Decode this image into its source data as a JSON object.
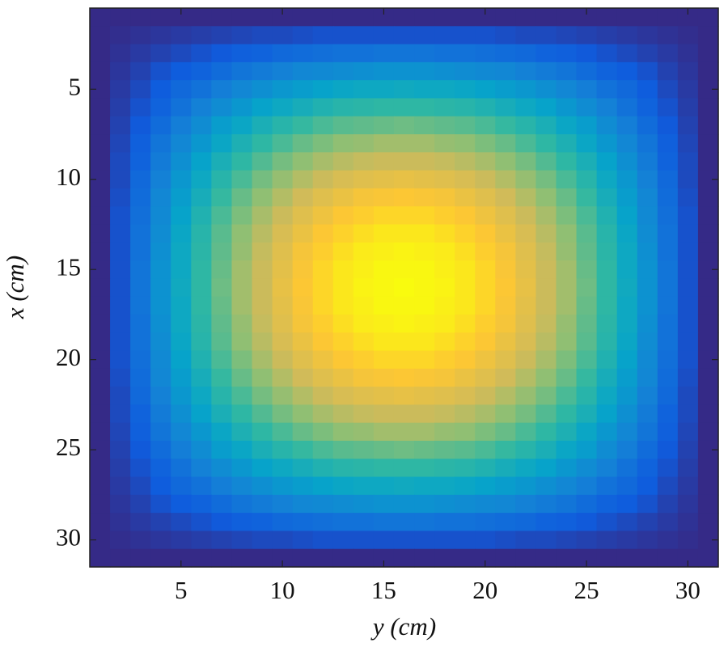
{
  "chart_data": {
    "type": "heatmap",
    "xlabel": "y (cm)",
    "ylabel": "x (cm)",
    "x": [
      1,
      2,
      3,
      4,
      5,
      6,
      7,
      8,
      9,
      10,
      11,
      12,
      13,
      14,
      15,
      16,
      17,
      18,
      19,
      20,
      21,
      22,
      23,
      24,
      25,
      26,
      27,
      28,
      29,
      30,
      31
    ],
    "y": [
      1,
      2,
      3,
      4,
      5,
      6,
      7,
      8,
      9,
      10,
      11,
      12,
      13,
      14,
      15,
      16,
      17,
      18,
      19,
      20,
      21,
      22,
      23,
      24,
      25,
      26,
      27,
      28,
      29,
      30,
      31
    ],
    "xlim": [
      0.5,
      31.5
    ],
    "ylim": [
      0.5,
      31.5
    ],
    "y_reversed": true,
    "xticks": [
      5,
      10,
      15,
      20,
      25,
      30
    ],
    "yticks": [
      5,
      10,
      15,
      20,
      25,
      30
    ],
    "zlim": [
      0,
      1
    ],
    "colormap": [
      "#352a87",
      "#0f5cdd",
      "#1481d6",
      "#06a4ca",
      "#2eb7a4",
      "#87bf77",
      "#d1bb59",
      "#fec832",
      "#f9fb0e"
    ],
    "z": [
      [
        0,
        0,
        0,
        0,
        0,
        0,
        0,
        0,
        0,
        0,
        0,
        0,
        0,
        0,
        0,
        0,
        0,
        0,
        0,
        0,
        0,
        0,
        0,
        0,
        0,
        0,
        0,
        0,
        0,
        0,
        0
      ],
      [
        0,
        0.01,
        0.02,
        0.03,
        0.04,
        0.05,
        0.06,
        0.07,
        0.08,
        0.08,
        0.09,
        0.1,
        0.1,
        0.1,
        0.1,
        0.1,
        0.1,
        0.1,
        0.1,
        0.1,
        0.09,
        0.08,
        0.08,
        0.07,
        0.06,
        0.05,
        0.04,
        0.03,
        0.02,
        0.01,
        0
      ],
      [
        0,
        0.02,
        0.04,
        0.06,
        0.08,
        0.1,
        0.12,
        0.14,
        0.15,
        0.17,
        0.18,
        0.19,
        0.2,
        0.2,
        0.21,
        0.21,
        0.21,
        0.2,
        0.2,
        0.19,
        0.18,
        0.17,
        0.15,
        0.14,
        0.12,
        0.1,
        0.08,
        0.06,
        0.04,
        0.02,
        0
      ],
      [
        0,
        0.03,
        0.06,
        0.1,
        0.13,
        0.15,
        0.18,
        0.21,
        0.23,
        0.25,
        0.27,
        0.28,
        0.29,
        0.3,
        0.31,
        0.31,
        0.31,
        0.3,
        0.29,
        0.28,
        0.27,
        0.25,
        0.23,
        0.21,
        0.18,
        0.15,
        0.13,
        0.1,
        0.06,
        0.03,
        0
      ],
      [
        0,
        0.04,
        0.08,
        0.13,
        0.17,
        0.2,
        0.24,
        0.27,
        0.3,
        0.33,
        0.35,
        0.37,
        0.39,
        0.4,
        0.4,
        0.41,
        0.4,
        0.4,
        0.39,
        0.37,
        0.35,
        0.33,
        0.3,
        0.27,
        0.24,
        0.2,
        0.17,
        0.13,
        0.08,
        0.04,
        0
      ],
      [
        0,
        0.05,
        0.1,
        0.15,
        0.2,
        0.25,
        0.29,
        0.33,
        0.37,
        0.4,
        0.43,
        0.46,
        0.48,
        0.49,
        0.5,
        0.5,
        0.5,
        0.49,
        0.48,
        0.46,
        0.43,
        0.4,
        0.37,
        0.33,
        0.29,
        0.25,
        0.2,
        0.15,
        0.1,
        0.05,
        0
      ],
      [
        0,
        0.06,
        0.12,
        0.18,
        0.24,
        0.29,
        0.35,
        0.39,
        0.44,
        0.48,
        0.51,
        0.54,
        0.56,
        0.57,
        0.58,
        0.59,
        0.58,
        0.57,
        0.56,
        0.54,
        0.51,
        0.48,
        0.44,
        0.39,
        0.35,
        0.29,
        0.24,
        0.18,
        0.12,
        0.06,
        0
      ],
      [
        0,
        0.07,
        0.14,
        0.21,
        0.27,
        0.33,
        0.39,
        0.45,
        0.5,
        0.54,
        0.58,
        0.61,
        0.64,
        0.65,
        0.67,
        0.67,
        0.67,
        0.65,
        0.64,
        0.61,
        0.58,
        0.54,
        0.5,
        0.45,
        0.39,
        0.33,
        0.27,
        0.21,
        0.14,
        0.07,
        0
      ],
      [
        0,
        0.08,
        0.15,
        0.23,
        0.3,
        0.37,
        0.44,
        0.5,
        0.55,
        0.6,
        0.64,
        0.68,
        0.71,
        0.73,
        0.74,
        0.74,
        0.74,
        0.73,
        0.71,
        0.68,
        0.64,
        0.6,
        0.55,
        0.5,
        0.44,
        0.37,
        0.3,
        0.23,
        0.15,
        0.08,
        0
      ],
      [
        0,
        0.08,
        0.17,
        0.25,
        0.33,
        0.4,
        0.48,
        0.54,
        0.6,
        0.65,
        0.7,
        0.74,
        0.77,
        0.79,
        0.8,
        0.81,
        0.8,
        0.79,
        0.77,
        0.74,
        0.7,
        0.65,
        0.6,
        0.54,
        0.48,
        0.4,
        0.33,
        0.25,
        0.17,
        0.08,
        0
      ],
      [
        0,
        0.09,
        0.18,
        0.27,
        0.35,
        0.43,
        0.51,
        0.58,
        0.64,
        0.7,
        0.75,
        0.79,
        0.82,
        0.85,
        0.86,
        0.87,
        0.86,
        0.85,
        0.82,
        0.79,
        0.75,
        0.7,
        0.64,
        0.58,
        0.51,
        0.43,
        0.35,
        0.27,
        0.18,
        0.09,
        0
      ],
      [
        0,
        0.1,
        0.19,
        0.28,
        0.37,
        0.46,
        0.54,
        0.61,
        0.68,
        0.74,
        0.79,
        0.83,
        0.87,
        0.89,
        0.91,
        0.91,
        0.91,
        0.89,
        0.87,
        0.83,
        0.79,
        0.74,
        0.68,
        0.61,
        0.54,
        0.46,
        0.37,
        0.28,
        0.19,
        0.1,
        0
      ],
      [
        0,
        0.1,
        0.2,
        0.29,
        0.39,
        0.48,
        0.56,
        0.64,
        0.71,
        0.77,
        0.82,
        0.87,
        0.9,
        0.93,
        0.95,
        0.95,
        0.95,
        0.93,
        0.9,
        0.87,
        0.82,
        0.77,
        0.71,
        0.64,
        0.56,
        0.48,
        0.39,
        0.29,
        0.2,
        0.1,
        0
      ],
      [
        0,
        0.1,
        0.2,
        0.3,
        0.4,
        0.49,
        0.57,
        0.65,
        0.73,
        0.79,
        0.85,
        0.89,
        0.93,
        0.96,
        0.97,
        0.98,
        0.97,
        0.96,
        0.93,
        0.89,
        0.85,
        0.79,
        0.73,
        0.65,
        0.57,
        0.49,
        0.4,
        0.3,
        0.2,
        0.1,
        0
      ],
      [
        0,
        0.1,
        0.21,
        0.31,
        0.4,
        0.5,
        0.58,
        0.67,
        0.74,
        0.8,
        0.86,
        0.91,
        0.95,
        0.97,
        0.99,
        0.99,
        0.99,
        0.97,
        0.95,
        0.91,
        0.86,
        0.8,
        0.74,
        0.67,
        0.58,
        0.5,
        0.4,
        0.31,
        0.21,
        0.1,
        0
      ],
      [
        0,
        0.1,
        0.21,
        0.31,
        0.41,
        0.5,
        0.59,
        0.67,
        0.74,
        0.81,
        0.87,
        0.91,
        0.95,
        0.98,
        0.99,
        1,
        0.99,
        0.98,
        0.95,
        0.91,
        0.87,
        0.81,
        0.74,
        0.67,
        0.59,
        0.5,
        0.41,
        0.31,
        0.21,
        0.1,
        0
      ],
      [
        0,
        0.1,
        0.21,
        0.31,
        0.4,
        0.5,
        0.58,
        0.67,
        0.74,
        0.8,
        0.86,
        0.91,
        0.95,
        0.97,
        0.99,
        0.99,
        0.99,
        0.97,
        0.95,
        0.91,
        0.86,
        0.8,
        0.74,
        0.67,
        0.58,
        0.5,
        0.4,
        0.31,
        0.21,
        0.1,
        0
      ],
      [
        0,
        0.1,
        0.2,
        0.3,
        0.4,
        0.49,
        0.57,
        0.65,
        0.73,
        0.79,
        0.85,
        0.89,
        0.93,
        0.96,
        0.97,
        0.98,
        0.97,
        0.96,
        0.93,
        0.89,
        0.85,
        0.79,
        0.73,
        0.65,
        0.57,
        0.49,
        0.4,
        0.3,
        0.2,
        0.1,
        0
      ],
      [
        0,
        0.1,
        0.2,
        0.29,
        0.39,
        0.48,
        0.56,
        0.64,
        0.71,
        0.77,
        0.82,
        0.87,
        0.9,
        0.93,
        0.95,
        0.95,
        0.95,
        0.93,
        0.9,
        0.87,
        0.82,
        0.77,
        0.71,
        0.64,
        0.56,
        0.48,
        0.39,
        0.29,
        0.2,
        0.1,
        0
      ],
      [
        0,
        0.1,
        0.19,
        0.28,
        0.37,
        0.46,
        0.54,
        0.61,
        0.68,
        0.74,
        0.79,
        0.83,
        0.87,
        0.89,
        0.91,
        0.91,
        0.91,
        0.89,
        0.87,
        0.83,
        0.79,
        0.74,
        0.68,
        0.61,
        0.54,
        0.46,
        0.37,
        0.28,
        0.19,
        0.1,
        0
      ],
      [
        0,
        0.09,
        0.18,
        0.27,
        0.35,
        0.43,
        0.51,
        0.58,
        0.64,
        0.7,
        0.75,
        0.79,
        0.82,
        0.85,
        0.86,
        0.87,
        0.86,
        0.85,
        0.82,
        0.79,
        0.75,
        0.7,
        0.64,
        0.58,
        0.51,
        0.43,
        0.35,
        0.27,
        0.18,
        0.09,
        0
      ],
      [
        0,
        0.08,
        0.17,
        0.25,
        0.33,
        0.4,
        0.48,
        0.54,
        0.6,
        0.65,
        0.7,
        0.74,
        0.77,
        0.79,
        0.8,
        0.81,
        0.8,
        0.79,
        0.77,
        0.74,
        0.7,
        0.65,
        0.6,
        0.54,
        0.48,
        0.4,
        0.33,
        0.25,
        0.17,
        0.08,
        0
      ],
      [
        0,
        0.08,
        0.15,
        0.23,
        0.3,
        0.37,
        0.44,
        0.5,
        0.55,
        0.6,
        0.64,
        0.68,
        0.71,
        0.73,
        0.74,
        0.74,
        0.74,
        0.73,
        0.71,
        0.68,
        0.64,
        0.6,
        0.55,
        0.5,
        0.44,
        0.37,
        0.3,
        0.23,
        0.15,
        0.08,
        0
      ],
      [
        0,
        0.07,
        0.14,
        0.21,
        0.27,
        0.33,
        0.39,
        0.45,
        0.5,
        0.54,
        0.58,
        0.61,
        0.64,
        0.65,
        0.67,
        0.67,
        0.67,
        0.65,
        0.64,
        0.61,
        0.58,
        0.54,
        0.5,
        0.45,
        0.39,
        0.33,
        0.27,
        0.21,
        0.14,
        0.07,
        0
      ],
      [
        0,
        0.06,
        0.12,
        0.18,
        0.24,
        0.29,
        0.35,
        0.39,
        0.44,
        0.48,
        0.51,
        0.54,
        0.56,
        0.57,
        0.58,
        0.59,
        0.58,
        0.57,
        0.56,
        0.54,
        0.51,
        0.48,
        0.44,
        0.39,
        0.35,
        0.29,
        0.24,
        0.18,
        0.12,
        0.06,
        0
      ],
      [
        0,
        0.05,
        0.1,
        0.15,
        0.2,
        0.25,
        0.29,
        0.33,
        0.37,
        0.4,
        0.43,
        0.46,
        0.48,
        0.49,
        0.5,
        0.5,
        0.5,
        0.49,
        0.48,
        0.46,
        0.43,
        0.4,
        0.37,
        0.33,
        0.29,
        0.25,
        0.2,
        0.15,
        0.1,
        0.05,
        0
      ],
      [
        0,
        0.04,
        0.08,
        0.13,
        0.17,
        0.2,
        0.24,
        0.27,
        0.3,
        0.33,
        0.35,
        0.37,
        0.39,
        0.4,
        0.4,
        0.41,
        0.4,
        0.4,
        0.39,
        0.37,
        0.35,
        0.33,
        0.3,
        0.27,
        0.24,
        0.2,
        0.17,
        0.13,
        0.08,
        0.04,
        0
      ],
      [
        0,
        0.03,
        0.06,
        0.1,
        0.13,
        0.15,
        0.18,
        0.21,
        0.23,
        0.25,
        0.27,
        0.28,
        0.29,
        0.3,
        0.31,
        0.31,
        0.31,
        0.3,
        0.29,
        0.28,
        0.27,
        0.25,
        0.23,
        0.21,
        0.18,
        0.15,
        0.13,
        0.1,
        0.06,
        0.03,
        0
      ],
      [
        0,
        0.02,
        0.04,
        0.06,
        0.08,
        0.1,
        0.12,
        0.14,
        0.15,
        0.17,
        0.18,
        0.19,
        0.2,
        0.2,
        0.21,
        0.21,
        0.21,
        0.2,
        0.2,
        0.19,
        0.18,
        0.17,
        0.15,
        0.14,
        0.12,
        0.1,
        0.08,
        0.06,
        0.04,
        0.02,
        0
      ],
      [
        0,
        0.01,
        0.02,
        0.03,
        0.04,
        0.05,
        0.06,
        0.07,
        0.08,
        0.08,
        0.09,
        0.1,
        0.1,
        0.1,
        0.1,
        0.1,
        0.1,
        0.1,
        0.1,
        0.1,
        0.09,
        0.08,
        0.08,
        0.07,
        0.06,
        0.05,
        0.04,
        0.03,
        0.02,
        0.01,
        0
      ],
      [
        0,
        0,
        0,
        0,
        0,
        0,
        0,
        0,
        0,
        0,
        0,
        0,
        0,
        0,
        0,
        0,
        0,
        0,
        0,
        0,
        0,
        0,
        0,
        0,
        0,
        0,
        0,
        0,
        0,
        0,
        0
      ]
    ]
  }
}
